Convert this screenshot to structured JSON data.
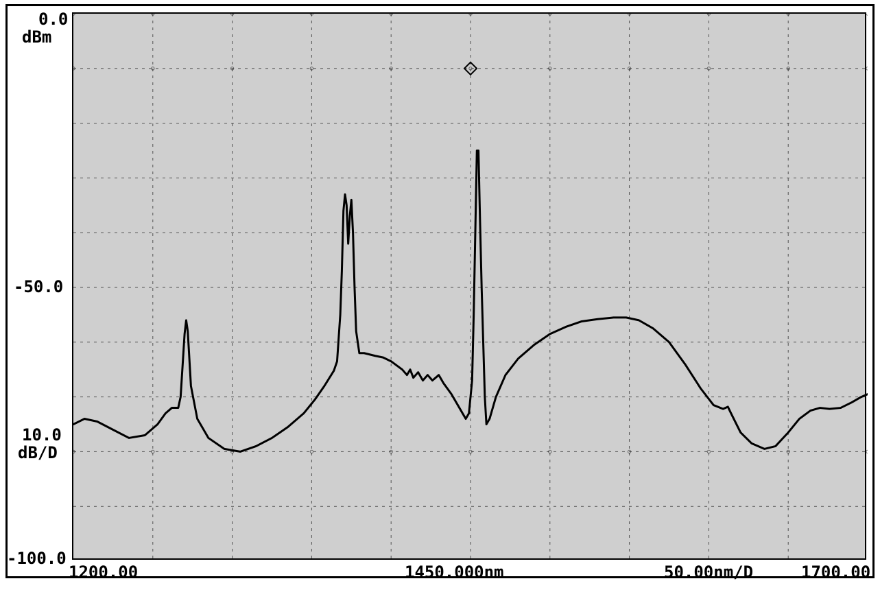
{
  "spectrum": {
    "type": "line",
    "title": "",
    "background_color": "#cfcfcf",
    "frame_color": "#000000",
    "grid_color": "#000000",
    "grid_dash": "4 6",
    "trace_color": "#000000",
    "trace_width": 2,
    "marker_color": "#000000",
    "x_axis": {
      "unit": "nm",
      "min": 1200.0,
      "max": 1700.0,
      "per_div": 50.0,
      "center": 1450.0,
      "ticks_nm": [
        1200,
        1250,
        1300,
        1350,
        1400,
        1450,
        1500,
        1550,
        1600,
        1650,
        1700
      ],
      "labels": {
        "start": "1200.00",
        "center": "1450.000nm",
        "per_div": "50.00nm/D",
        "end": "1700.00"
      },
      "label_fontsize_pt": 18,
      "label_fontweight": "bold"
    },
    "y_axis": {
      "unit": "dBm",
      "ref_level_dBm": 0.0,
      "per_div_dB": 10.0,
      "min_dBm": -100.0,
      "max_dBm": 0.0,
      "ticks_dBm": [
        0,
        -10,
        -20,
        -30,
        -40,
        -50,
        -60,
        -70,
        -80,
        -90,
        -100
      ],
      "labels": {
        "top_value": "0.0",
        "top_unit": "dBm",
        "mid_value": "-50.0",
        "scale_value": "10.0",
        "scale_unit": "dB/D",
        "bottom_value": "-100.0"
      },
      "label_fontsize_pt": 18,
      "label_fontweight": "bold"
    },
    "markers_nm_dBm": [
      [
        1450.0,
        -10.0
      ]
    ],
    "trace_points_nm_dBm": [
      [
        1200.0,
        -75.0
      ],
      [
        1207.0,
        -74.0
      ],
      [
        1215.0,
        -74.5
      ],
      [
        1225.0,
        -76.0
      ],
      [
        1235.0,
        -77.5
      ],
      [
        1245.0,
        -77.0
      ],
      [
        1253.0,
        -75.0
      ],
      [
        1258.0,
        -73.0
      ],
      [
        1262.0,
        -72.0
      ],
      [
        1266.0,
        -72.0
      ],
      [
        1267.5,
        -70.0
      ],
      [
        1270.0,
        -58.5
      ],
      [
        1271.0,
        -56.0
      ],
      [
        1272.0,
        -58.0
      ],
      [
        1274.0,
        -68.0
      ],
      [
        1278.0,
        -74.0
      ],
      [
        1285.0,
        -77.5
      ],
      [
        1295.0,
        -79.5
      ],
      [
        1305.0,
        -80.0
      ],
      [
        1315.0,
        -79.0
      ],
      [
        1325.0,
        -77.5
      ],
      [
        1335.0,
        -75.5
      ],
      [
        1345.0,
        -73.0
      ],
      [
        1352.0,
        -70.5
      ],
      [
        1358.0,
        -68.0
      ],
      [
        1364.0,
        -65.2
      ],
      [
        1366.0,
        -63.5
      ],
      [
        1368.0,
        -55.0
      ],
      [
        1369.0,
        -47.0
      ],
      [
        1370.0,
        -36.0
      ],
      [
        1371.0,
        -33.0
      ],
      [
        1372.0,
        -35.0
      ],
      [
        1373.0,
        -42.0
      ],
      [
        1374.0,
        -37.0
      ],
      [
        1375.0,
        -34.0
      ],
      [
        1376.0,
        -40.0
      ],
      [
        1377.0,
        -50.0
      ],
      [
        1378.0,
        -58.0
      ],
      [
        1380.0,
        -62.0
      ],
      [
        1383.0,
        -62.0
      ],
      [
        1390.0,
        -62.5
      ],
      [
        1395.0,
        -62.8
      ],
      [
        1400.0,
        -63.5
      ],
      [
        1407.0,
        -65.0
      ],
      [
        1410.0,
        -66.0
      ],
      [
        1412.0,
        -65.0
      ],
      [
        1414.0,
        -66.5
      ],
      [
        1417.0,
        -65.5
      ],
      [
        1420.0,
        -67.0
      ],
      [
        1423.0,
        -66.0
      ],
      [
        1426.0,
        -67.0
      ],
      [
        1430.0,
        -66.0
      ],
      [
        1433.0,
        -67.5
      ],
      [
        1438.0,
        -69.5
      ],
      [
        1443.0,
        -72.0
      ],
      [
        1447.0,
        -74.0
      ],
      [
        1449.0,
        -73.0
      ],
      [
        1451.0,
        -67.0
      ],
      [
        1452.0,
        -55.0
      ],
      [
        1453.0,
        -40.0
      ],
      [
        1454.0,
        -25.0
      ],
      [
        1455.0,
        -25.0
      ],
      [
        1456.0,
        -38.0
      ],
      [
        1457.0,
        -50.0
      ],
      [
        1458.0,
        -60.0
      ],
      [
        1459.0,
        -70.0
      ],
      [
        1460.0,
        -75.0
      ],
      [
        1462.0,
        -74.0
      ],
      [
        1466.0,
        -70.0
      ],
      [
        1472.0,
        -66.0
      ],
      [
        1480.0,
        -63.0
      ],
      [
        1490.0,
        -60.5
      ],
      [
        1500.0,
        -58.5
      ],
      [
        1510.0,
        -57.2
      ],
      [
        1520.0,
        -56.2
      ],
      [
        1530.0,
        -55.8
      ],
      [
        1540.0,
        -55.5
      ],
      [
        1548.0,
        -55.5
      ],
      [
        1556.0,
        -56.0
      ],
      [
        1565.0,
        -57.5
      ],
      [
        1575.0,
        -60.0
      ],
      [
        1585.0,
        -64.0
      ],
      [
        1595.0,
        -68.5
      ],
      [
        1603.0,
        -71.5
      ],
      [
        1609.0,
        -72.2
      ],
      [
        1612.0,
        -71.8
      ],
      [
        1614.0,
        -73.0
      ],
      [
        1620.0,
        -76.5
      ],
      [
        1627.0,
        -78.5
      ],
      [
        1635.0,
        -79.5
      ],
      [
        1642.0,
        -79.0
      ],
      [
        1650.0,
        -76.5
      ],
      [
        1657.0,
        -74.0
      ],
      [
        1664.0,
        -72.5
      ],
      [
        1670.0,
        -72.0
      ],
      [
        1676.0,
        -72.2
      ],
      [
        1683.0,
        -72.0
      ],
      [
        1690.0,
        -71.0
      ],
      [
        1696.0,
        -70.0
      ],
      [
        1700.0,
        -69.5
      ]
    ]
  }
}
